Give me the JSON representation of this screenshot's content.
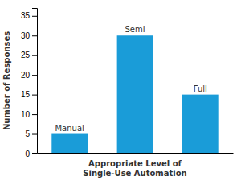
{
  "chart_data": {
    "type": "bar",
    "categories": [
      "Manual",
      "Semi",
      "Full"
    ],
    "values": [
      5,
      30,
      15
    ],
    "color": "#1a9cd8",
    "x_label": "Appropriate Level of\nSingle-Use Automation",
    "y_label": "Number of Responses",
    "ylim": [
      0,
      37
    ],
    "yticks": [
      0,
      5,
      10,
      15,
      20,
      25,
      30,
      35
    ],
    "grid": false,
    "tick_labels": "y"
  }
}
